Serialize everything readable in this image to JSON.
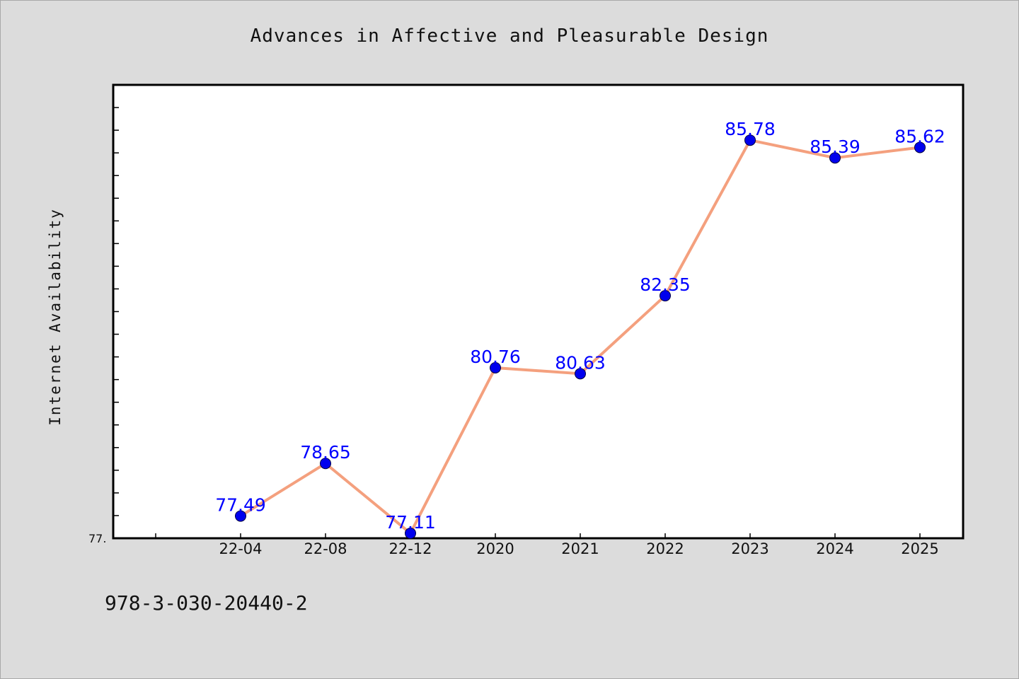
{
  "chart_data": {
    "type": "line",
    "title": "Advances in Affective and Pleasurable Design",
    "xlabel": "",
    "ylabel": "Internet Availability",
    "categories": [
      "22-04",
      "22-08",
      "22-12",
      "2020",
      "2021",
      "2022",
      "2023",
      "2024",
      "2025"
    ],
    "series": [
      {
        "values": [
          77.49,
          78.65,
          77.11,
          80.76,
          80.63,
          82.35,
          85.78,
          85.39,
          85.62
        ],
        "labels": [
          "77.49",
          "78.65",
          "77.11",
          "80.76",
          "80.63",
          "82.35",
          "85.78",
          "85.39",
          "85.62"
        ]
      }
    ],
    "ylim": [
      77.0,
      87.0
    ],
    "y_min_label": "77.",
    "grid": false,
    "legend": "none",
    "line_color": "#f4a07e",
    "marker_color": "#0000ee",
    "label_color": "#0000ff"
  },
  "footer": {
    "code": "978-3-030-20440-2"
  },
  "colors": {
    "background": "#dcdcdc",
    "plot_background": "#ffffff",
    "axis": "#000000"
  }
}
